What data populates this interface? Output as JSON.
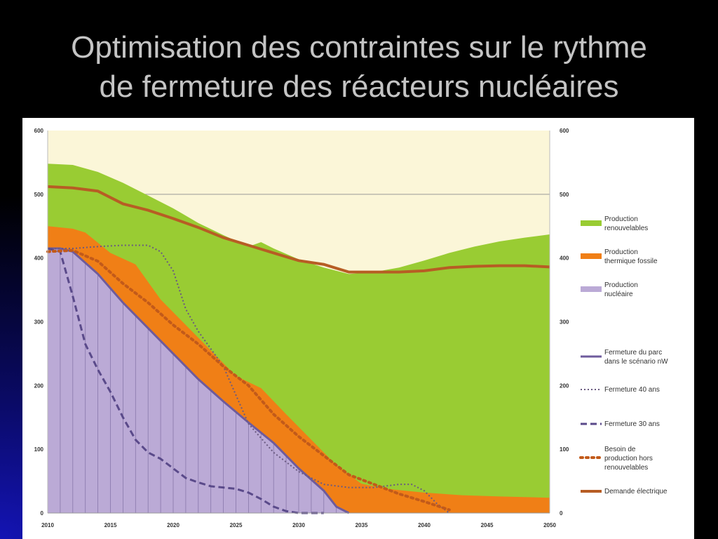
{
  "title": {
    "line1": "Optimisation des contraintes sur le rythme",
    "line2": "de fermeture des réacteurs nucléaires"
  },
  "colors": {
    "renewable": "#99cc33",
    "fossil": "#f07f16",
    "nuclear": "#bbaad6",
    "plot_bg": "#fbf6d8",
    "demand": "#b75d24",
    "nuclear_line": "#6e5b9c",
    "dash": "#5a4a8a",
    "dotted_orange": "#c25a1a"
  },
  "chart_data": {
    "type": "area",
    "xlabel": "",
    "ylabel": "",
    "xlim": [
      2010,
      2050
    ],
    "ylim": [
      0,
      600
    ],
    "x_ticks": [
      2010,
      2015,
      2020,
      2025,
      2030,
      2035,
      2040,
      2045,
      2050
    ],
    "y_ticks": [
      0,
      100,
      200,
      300,
      400,
      500,
      600
    ],
    "legend_position": "right",
    "series": [
      {
        "name": "Production renouvelables",
        "kind": "area",
        "x": [
          2010,
          2012,
          2014,
          2016,
          2018,
          2020,
          2022,
          2024,
          2026,
          2027,
          2028,
          2030,
          2032,
          2034,
          2036,
          2038,
          2040,
          2042,
          2044,
          2046,
          2048,
          2050
        ],
        "top": [
          548,
          546,
          535,
          518,
          498,
          478,
          455,
          436,
          418,
          425,
          415,
          398,
          385,
          375,
          378,
          385,
          396,
          408,
          418,
          426,
          432,
          437
        ]
      },
      {
        "name": "Production thermique fossile",
        "kind": "area",
        "x": [
          2010,
          2012,
          2013,
          2015,
          2017,
          2019,
          2021,
          2023,
          2025,
          2027,
          2029,
          2031,
          2033,
          2035,
          2037,
          2040,
          2043,
          2046,
          2050
        ],
        "top": [
          450,
          446,
          440,
          408,
          390,
          335,
          295,
          255,
          215,
          196,
          155,
          115,
          75,
          46,
          38,
          32,
          28,
          26,
          24
        ]
      },
      {
        "name": "Production nucléaire",
        "kind": "area",
        "x": [
          2010,
          2011,
          2012,
          2014,
          2016,
          2018,
          2020,
          2022,
          2024,
          2026,
          2028,
          2030,
          2032,
          2033,
          2034
        ],
        "top": [
          415,
          415,
          410,
          375,
          330,
          290,
          250,
          210,
          175,
          142,
          110,
          70,
          35,
          10,
          0
        ]
      },
      {
        "name": "Fermeture du parc dans le scénario nW",
        "kind": "line",
        "style": "solid",
        "x": [
          2010,
          2011,
          2012,
          2014,
          2016,
          2018,
          2020,
          2022,
          2024,
          2026,
          2028,
          2030,
          2032,
          2033,
          2034
        ],
        "y": [
          415,
          415,
          410,
          375,
          330,
          290,
          250,
          210,
          175,
          142,
          110,
          70,
          35,
          10,
          0
        ]
      },
      {
        "name": "Fermeture 40 ans",
        "kind": "line",
        "style": "dotted",
        "x": [
          2010,
          2012,
          2014,
          2016,
          2017,
          2018,
          2019,
          2020,
          2021,
          2022,
          2024,
          2026,
          2028,
          2030,
          2032,
          2034,
          2036,
          2038,
          2039,
          2040,
          2041,
          2042
        ],
        "y": [
          415,
          415,
          418,
          420,
          420,
          420,
          410,
          380,
          320,
          285,
          230,
          140,
          95,
          65,
          45,
          40,
          40,
          45,
          45,
          35,
          15,
          0
        ]
      },
      {
        "name": "Fermeture 30 ans",
        "kind": "line",
        "style": "dashed",
        "x": [
          2010,
          2011,
          2012,
          2013,
          2014,
          2015,
          2016,
          2017,
          2018,
          2019,
          2020,
          2021,
          2022,
          2023,
          2024,
          2025,
          2026,
          2027,
          2028,
          2029,
          2030,
          2031,
          2032
        ],
        "y": [
          415,
          410,
          340,
          265,
          225,
          190,
          150,
          115,
          95,
          85,
          70,
          55,
          48,
          42,
          40,
          38,
          32,
          22,
          10,
          3,
          0,
          0,
          0
        ]
      },
      {
        "name": "Besoin de production hors renouvelables",
        "kind": "line",
        "style": "dotted-bold",
        "x": [
          2010,
          2012,
          2014,
          2016,
          2018,
          2020,
          2022,
          2024,
          2026,
          2028,
          2030,
          2032,
          2034,
          2036,
          2038,
          2040,
          2042
        ],
        "y": [
          410,
          412,
          395,
          360,
          330,
          295,
          265,
          230,
          200,
          155,
          120,
          90,
          60,
          45,
          30,
          18,
          5
        ]
      },
      {
        "name": "Demande électrique",
        "kind": "line",
        "style": "solid-bold",
        "x": [
          2010,
          2012,
          2014,
          2016,
          2018,
          2020,
          2022,
          2024,
          2026,
          2028,
          2030,
          2032,
          2034,
          2036,
          2038,
          2040,
          2042,
          2044,
          2046,
          2048,
          2050
        ],
        "y": [
          512,
          510,
          505,
          485,
          475,
          462,
          448,
          432,
          420,
          408,
          396,
          390,
          378,
          378,
          378,
          380,
          385,
          387,
          388,
          388,
          386
        ]
      }
    ]
  }
}
